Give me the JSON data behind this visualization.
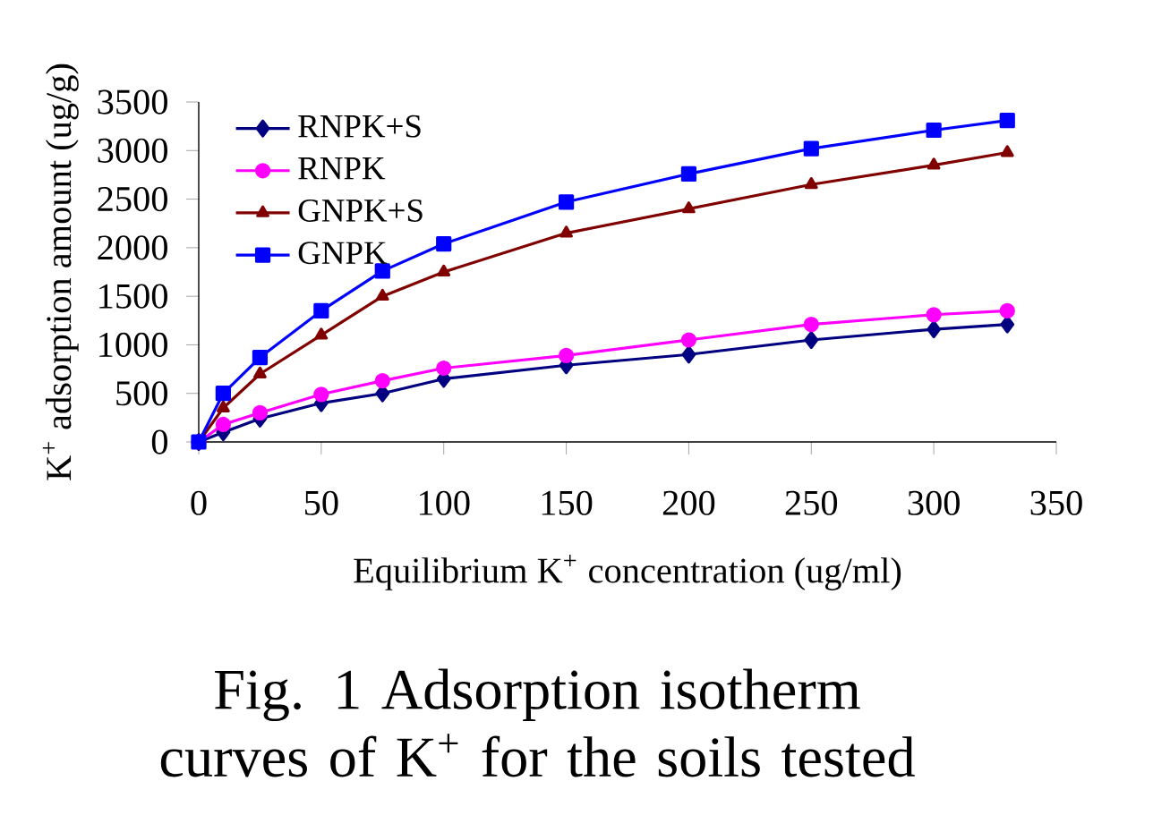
{
  "chart_data": {
    "type": "line",
    "title": "Fig. 1  Adsorption isotherm curves of K$^{+}$ for the soils tested",
    "xlabel": "Equilibrium K$^{+}$ concentration (ug/ml)",
    "ylabel": "K$^{+}$ adsorption amount (ug/g)",
    "x": [
      0,
      10,
      25,
      50,
      75,
      100,
      150,
      200,
      250,
      300,
      330
    ],
    "series": [
      {
        "name": "RNPK+S",
        "color": "#000080",
        "marker": "diamond",
        "values": [
          0,
          100,
          240,
          400,
          500,
          650,
          790,
          900,
          1050,
          1160,
          1210
        ]
      },
      {
        "name": "RNPK",
        "color": "#ff00ff",
        "marker": "circle",
        "values": [
          0,
          180,
          300,
          490,
          630,
          760,
          890,
          1050,
          1210,
          1310,
          1350
        ]
      },
      {
        "name": "GNPK+S",
        "color": "#800000",
        "marker": "triangle",
        "values": [
          0,
          350,
          700,
          1100,
          1500,
          1750,
          2150,
          2400,
          2650,
          2850,
          2980
        ]
      },
      {
        "name": "GNPK",
        "color": "#0000ff",
        "marker": "square",
        "values": [
          0,
          500,
          870,
          1350,
          1760,
          2040,
          2470,
          2760,
          3020,
          3210,
          3310
        ]
      }
    ],
    "xlim": [
      0,
      350
    ],
    "ylim": [
      0,
      3500
    ],
    "xticks": [
      0,
      50,
      100,
      150,
      200,
      250,
      300,
      350
    ],
    "yticks": [
      0,
      500,
      1000,
      1500,
      2000,
      2500,
      3000,
      3500
    ],
    "grid": false,
    "legend": "top left",
    "line_style": "solid"
  }
}
